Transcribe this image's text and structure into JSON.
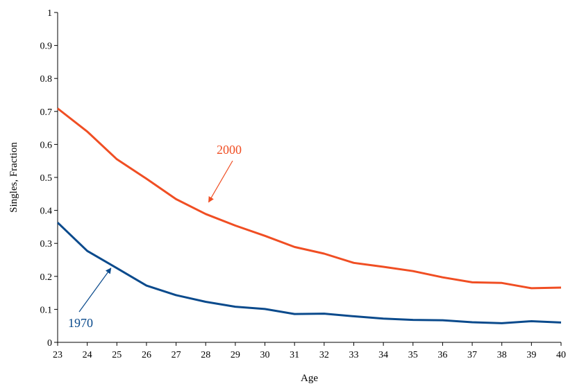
{
  "chart_data": {
    "type": "line",
    "title": "",
    "xlabel": "Age",
    "ylabel": "Singles, Fraction",
    "x": [
      23,
      24,
      25,
      26,
      27,
      28,
      29,
      30,
      31,
      32,
      33,
      34,
      35,
      36,
      37,
      38,
      39,
      40
    ],
    "xlim": [
      23,
      40
    ],
    "ylim": [
      0,
      1
    ],
    "yticks": [
      "0",
      "0.1",
      "0.2",
      "0.3",
      "0.4",
      "0.5",
      "0.6",
      "0.7",
      "0.8",
      "0.9",
      "1"
    ],
    "xticks": [
      "23",
      "24",
      "25",
      "26",
      "27",
      "28",
      "29",
      "30",
      "31",
      "32",
      "33",
      "34",
      "35",
      "36",
      "37",
      "38",
      "39",
      "40"
    ],
    "grid": false,
    "legend": "none",
    "series": [
      {
        "name": "2000",
        "color": "#f04e23",
        "values": [
          0.709,
          0.639,
          0.555,
          0.496,
          0.434,
          0.389,
          0.354,
          0.323,
          0.289,
          0.269,
          0.241,
          0.229,
          0.216,
          0.197,
          0.182,
          0.18,
          0.164,
          0.166
        ]
      },
      {
        "name": "1970",
        "color": "#0a4a8c",
        "values": [
          0.363,
          0.277,
          0.225,
          0.172,
          0.143,
          0.123,
          0.108,
          0.101,
          0.086,
          0.087,
          0.079,
          0.072,
          0.068,
          0.067,
          0.061,
          0.058,
          0.064,
          0.06
        ]
      }
    ],
    "annotations": [
      {
        "text": "2000",
        "series": "2000",
        "arrow_to": {
          "x": 28.1,
          "y": 0.425
        }
      },
      {
        "text": "1970",
        "series": "1970",
        "arrow_to": {
          "x": 24.8,
          "y": 0.225
        }
      }
    ]
  }
}
